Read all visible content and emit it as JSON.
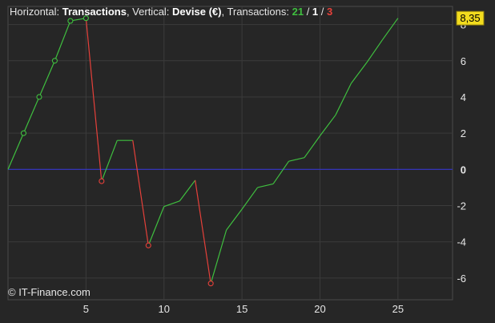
{
  "header": {
    "horizontal_label": "Horizontal: ",
    "horizontal_value": "Transactions",
    "vertical_label": ", Vertical: ",
    "vertical_value": "Devise (€)",
    "transactions_label": ", Transactions: ",
    "count_win": "21",
    "sep1": " / ",
    "count_neutral": "1",
    "sep2": " / ",
    "count_loss": "3"
  },
  "copyright": "© IT-Finance.com",
  "last_value_label": "8,35",
  "colors": {
    "background": "#262626",
    "grid": "#3b3b3b",
    "gain": "#3fbf3f",
    "loss": "#e5403a",
    "zero_line": "#3434c8",
    "badge": "#f2dc1e",
    "text": "#e6e6e6"
  },
  "chart_data": {
    "type": "line",
    "title": "",
    "xlabel": "",
    "ylabel": "",
    "xlim": [
      0,
      28.5
    ],
    "ylim": [
      -7.2,
      9
    ],
    "x_ticks": [
      5,
      10,
      15,
      20,
      25
    ],
    "y_ticks": [
      -6,
      -4,
      -2,
      0,
      2,
      4,
      6,
      8
    ],
    "grid": true,
    "points": [
      {
        "x": 0,
        "y": 0
      },
      {
        "x": 1,
        "y": 2
      },
      {
        "x": 2,
        "y": 4
      },
      {
        "x": 3,
        "y": 6
      },
      {
        "x": 4,
        "y": 8.2
      },
      {
        "x": 5,
        "y": 8.35
      },
      {
        "x": 6,
        "y": -0.65
      },
      {
        "x": 7,
        "y": 1.6
      },
      {
        "x": 8,
        "y": 1.6
      },
      {
        "x": 9,
        "y": -4.2
      },
      {
        "x": 10,
        "y": -2.05
      },
      {
        "x": 11,
        "y": -1.75
      },
      {
        "x": 12,
        "y": -0.6
      },
      {
        "x": 13,
        "y": -6.3
      },
      {
        "x": 14,
        "y": -3.35
      },
      {
        "x": 15,
        "y": -2.2
      },
      {
        "x": 16,
        "y": -1.0
      },
      {
        "x": 17,
        "y": -0.8
      },
      {
        "x": 18,
        "y": 0.45
      },
      {
        "x": 19,
        "y": 0.65
      },
      {
        "x": 20,
        "y": 1.85
      },
      {
        "x": 21,
        "y": 3.0
      },
      {
        "x": 22,
        "y": 4.75
      },
      {
        "x": 23,
        "y": 5.9
      },
      {
        "x": 24,
        "y": 7.15
      },
      {
        "x": 25,
        "y": 8.35
      }
    ],
    "markers": [
      1,
      2,
      3,
      4,
      5,
      6,
      9,
      13
    ],
    "last_value": 8.35
  }
}
